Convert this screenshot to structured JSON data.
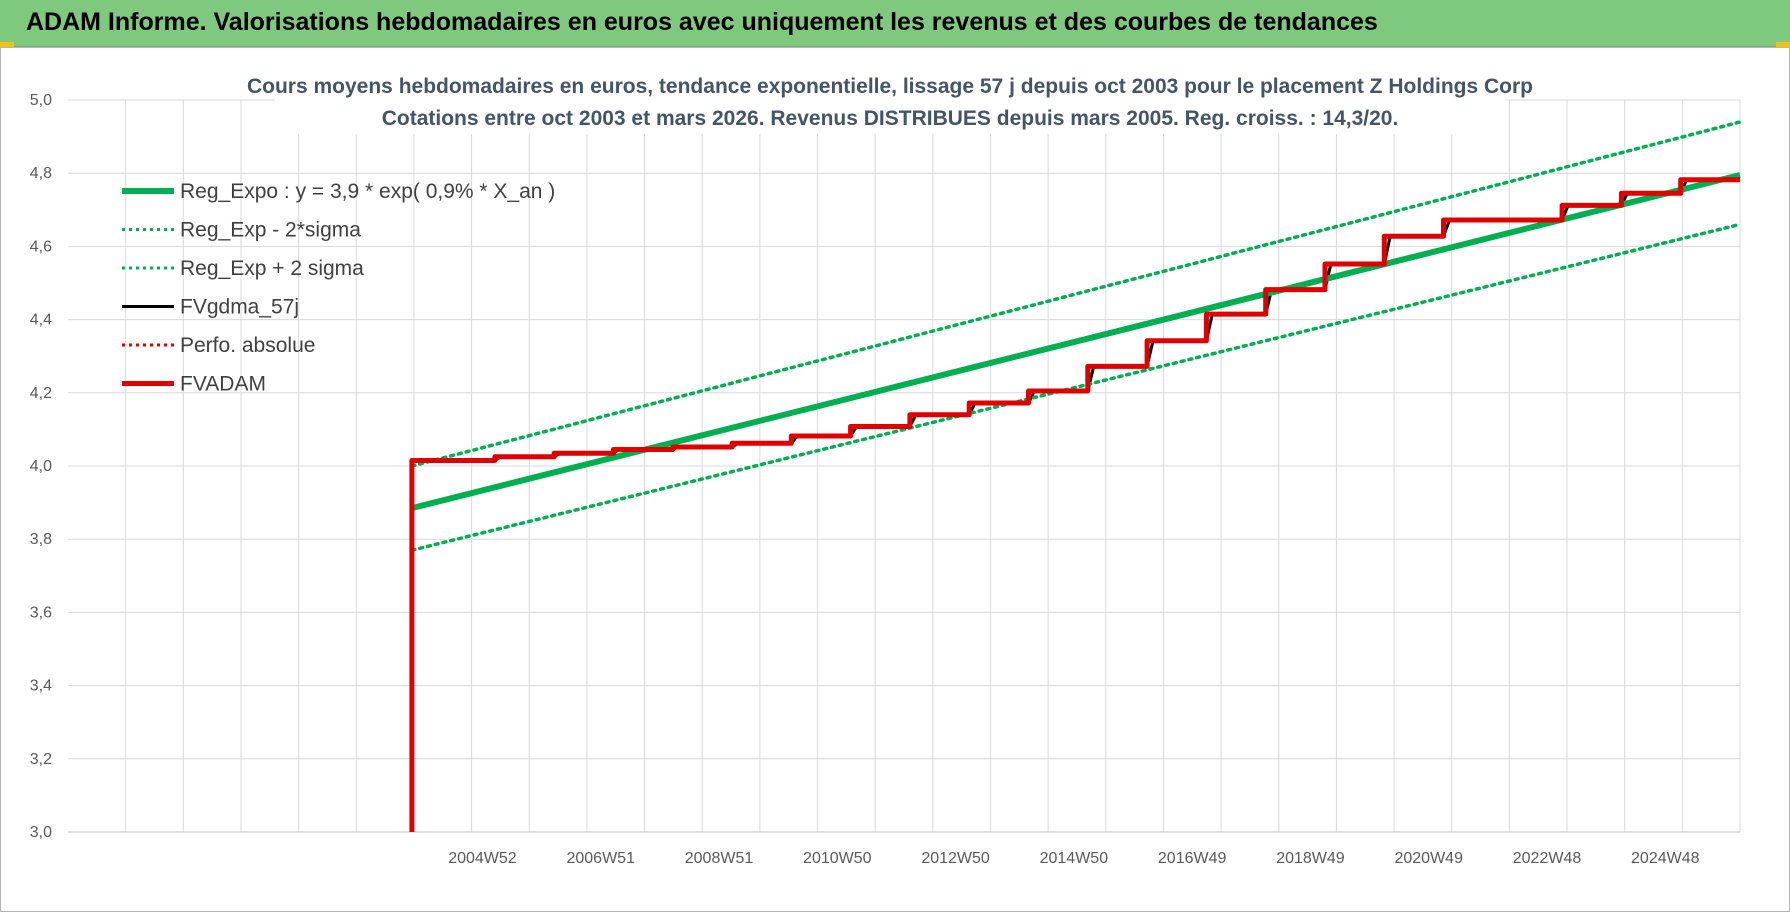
{
  "header": {
    "title": "ADAM Informe. Valorisations hebdomadaires en euros avec uniquement les revenus et des courbes de tendances"
  },
  "colors": {
    "header_bg": "#7ec97e",
    "green": "#00b050",
    "red": "#e00000",
    "black": "#000000",
    "corner": "#f2c40c"
  },
  "chart_data": {
    "type": "line",
    "title": "Cours moyens hebdomadaires en euros, tendance exponentielle, lissage 57 j depuis oct 2003 pour le placement Z Holdings Corp",
    "subtitle": "Cotations entre oct 2003 et mars 2026. Revenus DISTRIBUES depuis mars 2005. Reg. croiss. : 14,3/20.",
    "ylim": [
      3.0,
      5.0
    ],
    "yticks": [
      "5,0",
      "4,8",
      "4,6",
      "4,4",
      "4,2",
      "4,0",
      "3,8",
      "3,6",
      "3,4",
      "3,2",
      "3,0"
    ],
    "x_tick_labels": [
      "2004W52",
      "2006W51",
      "2008W51",
      "2010W50",
      "2012W50",
      "2014W50",
      "2016W49",
      "2018W49",
      "2020W49",
      "2022W48",
      "2024W48"
    ],
    "grid": true,
    "legend_position": "top-left",
    "series": [
      {
        "name": "Reg_Expo : y = 3,9 * exp( 0,9% *  X_an )",
        "style": "solid-thick",
        "color": "#00b050",
        "points": [
          [
            2003.8,
            3.885
          ],
          [
            2026.2,
            4.795
          ]
        ]
      },
      {
        "name": "Reg_Exp - 2*sigma",
        "style": "dotted",
        "color": "#00b050",
        "points": [
          [
            2003.8,
            3.77
          ],
          [
            2026.2,
            4.66
          ]
        ]
      },
      {
        "name": "Reg_Exp + 2 sigma",
        "style": "dotted",
        "color": "#00b050",
        "points": [
          [
            2003.8,
            4.0
          ],
          [
            2026.2,
            4.94
          ]
        ]
      },
      {
        "name": "FVgdma_57j",
        "style": "solid",
        "color": "#000000",
        "points": [
          [
            2003.8,
            4.015
          ],
          [
            2005.2,
            4.015
          ],
          [
            2005.3,
            4.025
          ],
          [
            2006.2,
            4.025
          ],
          [
            2006.3,
            4.035
          ],
          [
            2007.2,
            4.035
          ],
          [
            2007.3,
            4.045
          ],
          [
            2008.2,
            4.045
          ],
          [
            2008.3,
            4.052
          ],
          [
            2009.2,
            4.052
          ],
          [
            2009.3,
            4.062
          ],
          [
            2010.2,
            4.062
          ],
          [
            2010.3,
            4.082
          ],
          [
            2011.2,
            4.082
          ],
          [
            2011.3,
            4.108
          ],
          [
            2012.2,
            4.108
          ],
          [
            2012.3,
            4.14
          ],
          [
            2013.2,
            4.14
          ],
          [
            2013.3,
            4.172
          ],
          [
            2014.2,
            4.172
          ],
          [
            2014.3,
            4.205
          ],
          [
            2015.2,
            4.205
          ],
          [
            2015.3,
            4.272
          ],
          [
            2016.2,
            4.272
          ],
          [
            2016.3,
            4.342
          ],
          [
            2017.2,
            4.342
          ],
          [
            2017.3,
            4.415
          ],
          [
            2018.2,
            4.415
          ],
          [
            2018.3,
            4.482
          ],
          [
            2019.2,
            4.482
          ],
          [
            2019.3,
            4.552
          ],
          [
            2020.2,
            4.552
          ],
          [
            2020.3,
            4.628
          ],
          [
            2021.2,
            4.628
          ],
          [
            2021.3,
            4.672
          ],
          [
            2023.2,
            4.672
          ],
          [
            2023.3,
            4.712
          ],
          [
            2024.2,
            4.712
          ],
          [
            2024.3,
            4.745
          ],
          [
            2025.2,
            4.745
          ],
          [
            2025.3,
            4.782
          ],
          [
            2026.2,
            4.782
          ]
        ]
      },
      {
        "name": "Perfo. absolue",
        "style": "dotted",
        "color": "#e00000",
        "points": []
      },
      {
        "name": "FVADAM",
        "style": "solid-thick",
        "color": "#e00000",
        "points": [
          [
            2003.8,
            3.0
          ],
          [
            2003.8,
            4.015
          ],
          [
            2005.2,
            4.015
          ],
          [
            2005.2,
            4.025
          ],
          [
            2006.2,
            4.025
          ],
          [
            2006.2,
            4.035
          ],
          [
            2007.2,
            4.035
          ],
          [
            2007.2,
            4.045
          ],
          [
            2008.2,
            4.045
          ],
          [
            2008.2,
            4.052
          ],
          [
            2009.2,
            4.052
          ],
          [
            2009.2,
            4.062
          ],
          [
            2010.2,
            4.062
          ],
          [
            2010.2,
            4.082
          ],
          [
            2011.2,
            4.082
          ],
          [
            2011.2,
            4.108
          ],
          [
            2012.2,
            4.108
          ],
          [
            2012.2,
            4.14
          ],
          [
            2013.2,
            4.14
          ],
          [
            2013.2,
            4.172
          ],
          [
            2014.2,
            4.172
          ],
          [
            2014.2,
            4.205
          ],
          [
            2015.2,
            4.205
          ],
          [
            2015.2,
            4.272
          ],
          [
            2016.2,
            4.272
          ],
          [
            2016.2,
            4.342
          ],
          [
            2017.2,
            4.342
          ],
          [
            2017.2,
            4.415
          ],
          [
            2018.2,
            4.415
          ],
          [
            2018.2,
            4.482
          ],
          [
            2019.2,
            4.482
          ],
          [
            2019.2,
            4.552
          ],
          [
            2020.2,
            4.552
          ],
          [
            2020.2,
            4.628
          ],
          [
            2021.2,
            4.628
          ],
          [
            2021.2,
            4.672
          ],
          [
            2023.2,
            4.672
          ],
          [
            2023.2,
            4.712
          ],
          [
            2024.2,
            4.712
          ],
          [
            2024.2,
            4.745
          ],
          [
            2025.2,
            4.745
          ],
          [
            2025.2,
            4.782
          ],
          [
            2026.2,
            4.782
          ]
        ]
      }
    ]
  }
}
